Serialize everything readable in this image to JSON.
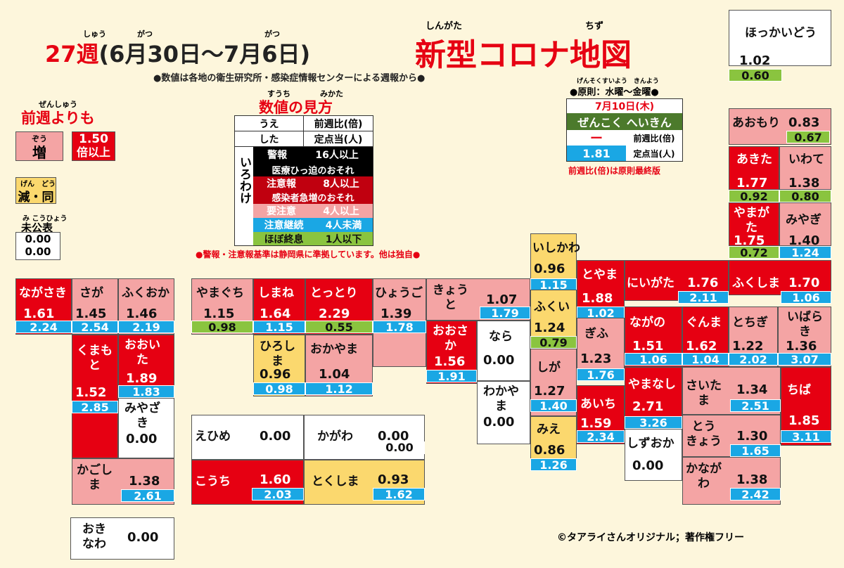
{
  "header": {
    "week": "27週",
    "week_ruby": "しゅう",
    "period": "(6月30日～7月6日)",
    "ruby_gatsu1": "がつ",
    "ruby_gatsu2": "がつ",
    "title": "新型コロナ地図",
    "title_ruby1": "しんがた",
    "title_ruby2": "ちず",
    "source_note": "●数値は各地の衛生研究所・感染症情報センターによる週報から●"
  },
  "legend_prev": {
    "ruby": "ぜんしゅう",
    "title": "前週よりも",
    "increase_ruby": "ぞう",
    "increase": "増",
    "over_value": "1.50",
    "over_label": "倍以上",
    "decrease_ruby": "げん　どう",
    "decrease": "減・同",
    "unpublished_ruby": "み こうひょう",
    "unpublished": "未公表",
    "unpublished_v1": "0.00",
    "unpublished_v2": "0.00"
  },
  "how_to_read": {
    "ruby1": "すうち",
    "ruby2": "みかた",
    "title": "数値の見方",
    "top_label": "うえ",
    "top_value": "前週比(倍)",
    "bottom_label": "した",
    "bottom_value": "定点当(人)",
    "side_label": "いろわけ",
    "rows": [
      {
        "a": "警報",
        "b": "16人以上",
        "c": "医療ひっ迫のおそれ"
      },
      {
        "a": "注意報",
        "b": "8人以上",
        "c": "感染者急増のおそれ"
      },
      {
        "a": "要注意",
        "b": "4人以上"
      },
      {
        "a": "注意継続",
        "b": "4人未満"
      },
      {
        "a": "ほぼ終息",
        "b": "1人以下"
      }
    ],
    "footnote": "●警報・注意報基準は静岡県に準拠しています。他は独自●"
  },
  "national": {
    "rule_ruby": "げんそくすいよう　きんよう",
    "rule": "●原則：水曜～金曜●",
    "date": "7月10日(木)",
    "label": "ぜんこく へいきん",
    "ratio": "ー",
    "ratio_label": "前週比(倍)",
    "per_site": "1.81",
    "per_site_label": "定点当(人)",
    "note1": "前週比(倍)は原則",
    "note2": "最終版"
  },
  "colors": {
    "alarm": "#e60012",
    "up": "#f4a4a4",
    "down": "#fbd86e",
    "cyan": "#1aa7e4",
    "green": "#8ac43f"
  },
  "prefectures": {
    "hokkaido": {
      "name": "ほっかいどう",
      "ratio": "1.02",
      "per": "0.60"
    },
    "aomori": {
      "name": "あおもり",
      "ratio": "0.83",
      "per": "0.67"
    },
    "akita": {
      "name": "あきた",
      "ratio": "1.77",
      "per": "0.92"
    },
    "iwate": {
      "name": "いわて",
      "ratio": "1.38",
      "per": "0.80"
    },
    "yamagata": {
      "name": "やまが\nた",
      "ratio": "1.75",
      "per": "0.72"
    },
    "miyagi": {
      "name": "みやぎ",
      "ratio": "1.40",
      "per": "1.24"
    },
    "fukushima": {
      "name": "ふくしま",
      "ratio": "1.70",
      "per": "1.06"
    },
    "niigata": {
      "name": "にいがた",
      "ratio": "1.76",
      "per": "2.11"
    },
    "toyama": {
      "name": "とやま",
      "ratio": "1.88",
      "per": "1.02"
    },
    "ishikawa": {
      "name": "いしかわ",
      "ratio": "0.96",
      "per": "1.15"
    },
    "fukui": {
      "name": "ふくい",
      "ratio": "1.24",
      "per": "0.79"
    },
    "gifu": {
      "name": "ぎふ",
      "ratio": "1.23",
      "per": "1.76"
    },
    "nagano": {
      "name": "ながの",
      "ratio": "1.51",
      "per": "1.06"
    },
    "gunma": {
      "name": "ぐんま",
      "ratio": "1.62",
      "per": "1.04"
    },
    "tochigi": {
      "name": "とちぎ",
      "ratio": "1.22",
      "per": "2.02"
    },
    "ibaraki": {
      "name": "いばら\nき",
      "ratio": "1.36",
      "per": "3.07"
    },
    "shiga": {
      "name": "しが",
      "ratio": "1.27",
      "per": "1.40"
    },
    "mie": {
      "name": "みえ",
      "ratio": "0.86",
      "per": "1.26"
    },
    "aichi": {
      "name": "あいち",
      "ratio": "1.59",
      "per": "2.34"
    },
    "yamanashi": {
      "name": "やまなし",
      "ratio": "2.71",
      "per": "3.26"
    },
    "saitama": {
      "name": "さいた\nま",
      "ratio": "1.34",
      "per": "2.51"
    },
    "chiba": {
      "name": "ちば",
      "ratio": "1.85",
      "per": "3.11"
    },
    "tokyo": {
      "name": "とう\nきょう",
      "ratio": "1.30",
      "per": "1.65"
    },
    "shizuoka": {
      "name": "しずおか",
      "ratio": "0.00"
    },
    "kanagawa": {
      "name": "かなが\nわ",
      "ratio": "1.38",
      "per": "2.42"
    },
    "kyoto": {
      "name": "きょう\nと",
      "ratio": "1.07",
      "per": "1.79"
    },
    "osaka": {
      "name": "おおさ\nか",
      "ratio": "1.56",
      "per": "1.91"
    },
    "nara": {
      "name": "なら",
      "ratio": "0.00"
    },
    "wakayama": {
      "name": "わかや\nま",
      "ratio": "0.00"
    },
    "hyogo": {
      "name": "ひょうご",
      "ratio": "1.39",
      "per": "1.78"
    },
    "tottori": {
      "name": "とっとり",
      "ratio": "2.29",
      "per": "0.55"
    },
    "shimane": {
      "name": "しまね",
      "ratio": "1.64",
      "per": "1.15"
    },
    "yamaguchi": {
      "name": "やまぐち",
      "ratio": "1.15",
      "per": "0.98"
    },
    "hiroshima": {
      "name": "ひろし\nま",
      "ratio": "0.96",
      "per": "0.98"
    },
    "okayama": {
      "name": "おかやま",
      "ratio": "1.04",
      "per": "1.12"
    },
    "ehime": {
      "name": "えひめ",
      "ratio": "0.00"
    },
    "kagawa": {
      "name": "かがわ",
      "ratio": "0.00",
      "per": "0.00"
    },
    "kochi": {
      "name": "こうち",
      "ratio": "1.60",
      "per": "2.03"
    },
    "tokushima": {
      "name": "とくしま",
      "ratio": "0.93",
      "per": "1.62"
    },
    "nagasaki": {
      "name": "ながさき",
      "ratio": "1.61",
      "per": "2.24"
    },
    "saga": {
      "name": "さが",
      "ratio": "1.45",
      "per": "2.54"
    },
    "fukuoka": {
      "name": "ふくおか",
      "ratio": "1.46",
      "per": "2.19"
    },
    "kumamoto": {
      "name": "くまも\nと",
      "ratio": "1.52",
      "per": "2.85"
    },
    "oita": {
      "name": "おおい\nた",
      "ratio": "1.89",
      "per": "1.83"
    },
    "miyazaki": {
      "name": "みやざ\nき",
      "ratio": "0.00"
    },
    "kagoshima": {
      "name": "かごし\nま",
      "ratio": "1.38",
      "per": "2.61"
    },
    "okinawa": {
      "name": "おき\nなわ",
      "ratio": "0.00"
    }
  },
  "copyright": "©タアライさんオリジナル；著作権フリー"
}
